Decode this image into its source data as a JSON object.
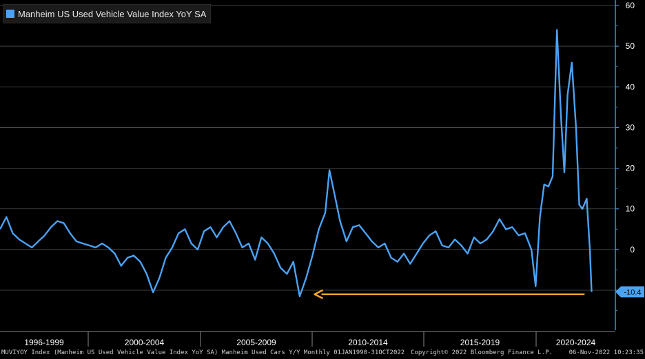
{
  "legend": {
    "label": "Manheim US Used Vehicle Value Index YoY SA",
    "color": "#4aa3f5"
  },
  "footer": {
    "left": "MUVIYOY Index (Manheim US Used Vehicle Value Index YoY SA) Manheim Used Cars Y/Y  Monthly 01JAN1990-31OCT2022",
    "center": "Copyright© 2022 Bloomberg Finance L.P.",
    "right": "06-Nov-2022 10:23:35"
  },
  "colors": {
    "background": "#000000",
    "series": "#4aa3f5",
    "arrow": "#f5a623",
    "grid": "#555555"
  },
  "chart_data": {
    "type": "line",
    "y_ticks": [
      60,
      50,
      40,
      30,
      20,
      10,
      0,
      -10
    ],
    "ylim": [
      -18,
      61
    ],
    "grid": "horizontal",
    "axis_position": "right",
    "last_value_label": "-10.4",
    "x_periods": [
      "1996-1999",
      "2000-2004",
      "2005-2009",
      "2010-2014",
      "2015-2019",
      "2020-2024"
    ],
    "annotation": {
      "type": "arrow",
      "color": "orange",
      "from_x": 2022.5,
      "to_x": 2009.8,
      "y": -11
    },
    "series": [
      {
        "values_note": "x = fractional year, y = YoY %",
        "x": [
          1995.0,
          1995.3,
          1995.6,
          1995.9,
          1996.2,
          1996.5,
          1996.8,
          1997.1,
          1997.4,
          1997.7,
          1998.0,
          1998.3,
          1998.6,
          1998.9,
          1999.2,
          1999.5,
          1999.8,
          2000.1,
          2000.4,
          2000.7,
          2001.0,
          2001.3,
          2001.6,
          2001.9,
          2002.2,
          2002.5,
          2002.8,
          2003.1,
          2003.4,
          2003.7,
          2004.0,
          2004.3,
          2004.6,
          2004.9,
          2005.2,
          2005.5,
          2005.8,
          2006.1,
          2006.4,
          2006.7,
          2007.0,
          2007.3,
          2007.6,
          2007.9,
          2008.2,
          2008.5,
          2008.8,
          2009.1,
          2009.4,
          2009.7,
          2010.0,
          2010.3,
          2010.5,
          2010.8,
          2011.0,
          2011.3,
          2011.6,
          2011.9,
          2012.2,
          2012.5,
          2012.8,
          2013.1,
          2013.4,
          2013.7,
          2014.0,
          2014.3,
          2014.6,
          2014.9,
          2015.2,
          2015.5,
          2015.8,
          2016.1,
          2016.4,
          2016.7,
          2017.0,
          2017.3,
          2017.6,
          2017.9,
          2018.2,
          2018.5,
          2018.8,
          2019.1,
          2019.4,
          2019.7,
          2020.0,
          2020.2,
          2020.4,
          2020.6,
          2020.8,
          2021.0,
          2021.2,
          2021.4,
          2021.55,
          2021.7,
          2021.9,
          2022.1,
          2022.25,
          2022.4,
          2022.6,
          2022.75,
          2022.83
        ],
        "y": [
          5.0,
          8.0,
          4.0,
          2.5,
          1.5,
          0.5,
          2.0,
          3.5,
          5.5,
          7.0,
          6.5,
          4.0,
          2.0,
          1.5,
          1.0,
          0.5,
          1.5,
          0.5,
          -1.0,
          -4.0,
          -2.0,
          -1.5,
          -3.0,
          -6.0,
          -10.5,
          -7.0,
          -2.0,
          0.5,
          4.0,
          5.0,
          1.5,
          0.0,
          4.5,
          5.5,
          3.0,
          5.5,
          7.0,
          4.0,
          0.5,
          1.5,
          -2.5,
          3.0,
          1.5,
          -1.0,
          -4.5,
          -6.0,
          -3.0,
          -11.5,
          -7.0,
          -1.5,
          5.0,
          9.0,
          19.5,
          12.0,
          7.0,
          2.0,
          5.5,
          6.0,
          4.0,
          2.0,
          0.5,
          1.5,
          -2.0,
          -3.0,
          -1.0,
          -3.5,
          -1.0,
          1.5,
          3.5,
          4.5,
          1.0,
          0.5,
          2.5,
          1.0,
          -1.0,
          3.0,
          1.5,
          2.5,
          4.5,
          7.5,
          5.0,
          5.5,
          3.5,
          4.0,
          0.0,
          -9.0,
          8.0,
          16.0,
          15.5,
          18.0,
          54.0,
          32.0,
          19.0,
          38.0,
          46.0,
          30.0,
          11.0,
          10.0,
          12.5,
          0.0,
          -10.4
        ]
      }
    ]
  }
}
